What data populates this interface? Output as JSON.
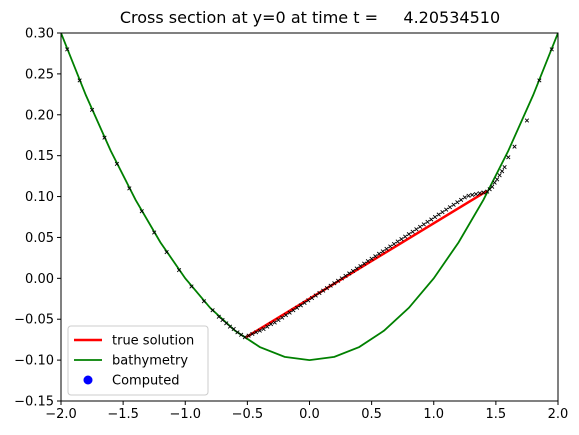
{
  "chart_data": {
    "type": "line",
    "title": "Cross section at y=0 at time t =     4.20534510",
    "xlabel": "",
    "ylabel": "",
    "xlim": [
      -2.0,
      2.0
    ],
    "ylim": [
      -0.15,
      0.3
    ],
    "grid": false,
    "legend_position": "lower-left",
    "xticks": [
      -2.0,
      -1.5,
      -1.0,
      -0.5,
      0.0,
      0.5,
      1.0,
      1.5,
      2.0
    ],
    "xtick_labels": [
      "−2.0",
      "−1.5",
      "−1.0",
      "−0.5",
      "0.0",
      "0.5",
      "1.0",
      "1.5",
      "2.0"
    ],
    "yticks": [
      -0.15,
      -0.1,
      -0.05,
      0.0,
      0.05,
      0.1,
      0.15,
      0.2,
      0.25,
      0.3
    ],
    "ytick_labels": [
      "−0.15",
      "−0.10",
      "−0.05",
      "0.00",
      "0.05",
      "0.10",
      "0.15",
      "0.20",
      "0.25",
      "0.30"
    ],
    "colors": {
      "true_solution": "#ff0000",
      "bathymetry": "#008000",
      "computed": "#0000ff",
      "computed_markers": "#000000"
    },
    "series": [
      {
        "name": "true solution",
        "kind": "line",
        "x": [
          -0.51,
          1.43
        ],
        "y": [
          -0.072,
          0.107
        ]
      },
      {
        "name": "bathymetry",
        "kind": "line",
        "x": [
          -2.0,
          -1.8,
          -1.6,
          -1.4,
          -1.2,
          -1.0,
          -0.8,
          -0.6,
          -0.4,
          -0.2,
          0.0,
          0.2,
          0.4,
          0.6,
          0.8,
          1.0,
          1.2,
          1.4,
          1.6,
          1.8,
          2.0
        ],
        "y": [
          0.3,
          0.224,
          0.156,
          0.096,
          0.044,
          0.0,
          -0.036,
          -0.064,
          -0.084,
          -0.096,
          -0.1,
          -0.096,
          -0.084,
          -0.064,
          -0.036,
          0.0,
          0.044,
          0.096,
          0.156,
          0.224,
          0.3
        ]
      },
      {
        "name": "Computed",
        "kind": "markers",
        "x": [
          -1.95,
          -1.85,
          -1.75,
          -1.65,
          -1.55,
          -1.45,
          -1.35,
          -1.25,
          -1.15,
          -1.05,
          -0.95,
          -0.85,
          -0.78,
          -0.73,
          -0.7,
          -0.67,
          -0.64,
          -0.61,
          -0.58,
          -0.55,
          -0.52,
          -0.49,
          -0.46,
          -0.43,
          -0.4,
          -0.37,
          -0.34,
          -0.31,
          -0.28,
          -0.25,
          -0.22,
          -0.19,
          -0.16,
          -0.13,
          -0.1,
          -0.07,
          -0.04,
          -0.01,
          0.02,
          0.05,
          0.08,
          0.11,
          0.14,
          0.17,
          0.2,
          0.23,
          0.26,
          0.29,
          0.32,
          0.35,
          0.38,
          0.41,
          0.44,
          0.47,
          0.5,
          0.53,
          0.56,
          0.59,
          0.62,
          0.65,
          0.68,
          0.71,
          0.74,
          0.77,
          0.8,
          0.83,
          0.86,
          0.89,
          0.92,
          0.95,
          0.98,
          1.01,
          1.04,
          1.07,
          1.1,
          1.13,
          1.16,
          1.19,
          1.22,
          1.25,
          1.28,
          1.31,
          1.34,
          1.37,
          1.4,
          1.43,
          1.45,
          1.47,
          1.49,
          1.51,
          1.53,
          1.55,
          1.57,
          1.6,
          1.65,
          1.75,
          1.85,
          1.95
        ],
        "y": [
          0.28,
          0.242,
          0.206,
          0.172,
          0.14,
          0.11,
          0.082,
          0.056,
          0.032,
          0.01,
          -0.01,
          -0.028,
          -0.039,
          -0.047,
          -0.051,
          -0.055,
          -0.059,
          -0.062,
          -0.066,
          -0.069,
          -0.072,
          -0.07,
          -0.068,
          -0.066,
          -0.064,
          -0.062,
          -0.059,
          -0.056,
          -0.054,
          -0.051,
          -0.048,
          -0.045,
          -0.042,
          -0.039,
          -0.036,
          -0.033,
          -0.03,
          -0.027,
          -0.024,
          -0.021,
          -0.018,
          -0.015,
          -0.012,
          -0.009,
          -0.006,
          -0.003,
          0.0,
          0.003,
          0.006,
          0.009,
          0.012,
          0.015,
          0.018,
          0.021,
          0.024,
          0.027,
          0.03,
          0.033,
          0.036,
          0.039,
          0.042,
          0.045,
          0.048,
          0.051,
          0.054,
          0.057,
          0.06,
          0.063,
          0.066,
          0.069,
          0.072,
          0.075,
          0.078,
          0.081,
          0.084,
          0.087,
          0.09,
          0.093,
          0.096,
          0.099,
          0.101,
          0.102,
          0.103,
          0.104,
          0.105,
          0.106,
          0.109,
          0.112,
          0.117,
          0.121,
          0.126,
          0.131,
          0.136,
          0.148,
          0.161,
          0.193,
          0.242,
          0.28
        ]
      }
    ]
  }
}
